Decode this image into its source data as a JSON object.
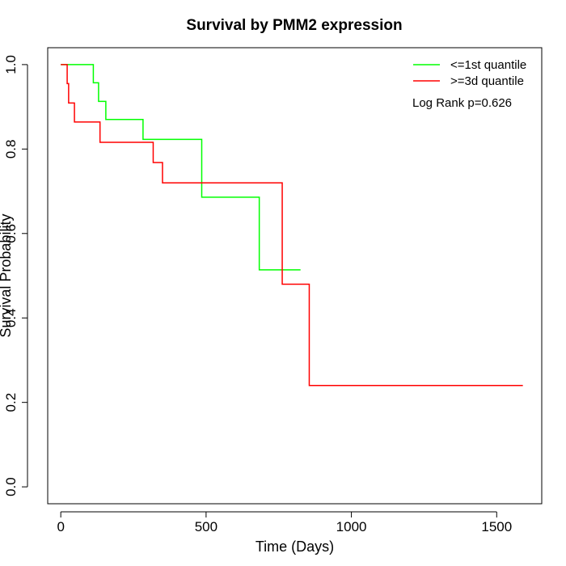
{
  "chart_data": {
    "type": "line",
    "step": true,
    "title": "Survival by PMM2 expression",
    "xlabel": "Time (Days)",
    "ylabel": "Survival Probability",
    "xlim": [
      -45,
      1655
    ],
    "ylim": [
      -0.04,
      1.04
    ],
    "xticks": [
      0,
      500,
      1000,
      1500
    ],
    "xtick_labels": [
      "0",
      "500",
      "1000",
      "1500"
    ],
    "yticks": [
      0.0,
      0.2,
      0.4,
      0.6,
      0.8,
      1.0
    ],
    "ytick_labels": [
      "0.0",
      "0.2",
      "0.4",
      "0.6",
      "0.8",
      "1.0"
    ],
    "grid": false,
    "legend_position": "top-right",
    "annotation": "Log Rank p=0.626",
    "series": [
      {
        "name": "<=1st quantile",
        "color": "#00ff00",
        "x": [
          0,
          112,
          130,
          155,
          283,
          485,
          683,
          825
        ],
        "y": [
          1.0,
          0.957,
          0.913,
          0.87,
          0.823,
          0.686,
          0.514,
          0.514
        ]
      },
      {
        "name": ">=3d quantile",
        "color": "#ff0000",
        "x": [
          0,
          22,
          27,
          47,
          135,
          318,
          350,
          762,
          855,
          1590
        ],
        "y": [
          1.0,
          0.955,
          0.909,
          0.864,
          0.816,
          0.768,
          0.72,
          0.48,
          0.24,
          0.24
        ]
      }
    ]
  }
}
